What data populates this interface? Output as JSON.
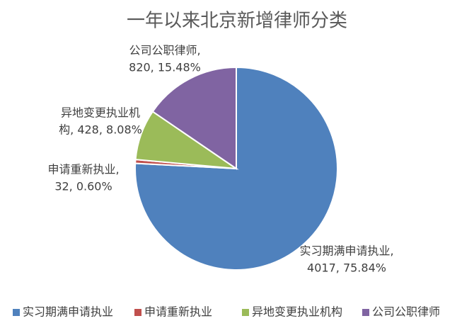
{
  "chart_data": {
    "type": "pie",
    "title": "一年以来北京新增律师分类",
    "categories": [
      "实习期满申请执业",
      "申请重新执业",
      "异地变更执业机构",
      "公司公职律师"
    ],
    "values": [
      4017,
      32,
      428,
      820
    ],
    "value_labels": [
      [
        "实习期满申请执业,",
        "4017, 75.84%"
      ],
      [
        "申请重新执业,",
        "32, 0.60%"
      ],
      [
        "异地变更执业机",
        "构, 428, 8.08%"
      ],
      [
        "公司公职律师,",
        "820, 15.48%"
      ]
    ],
    "colors": [
      "#4f81bd",
      "#c0504d",
      "#9bbb59",
      "#8064a2"
    ],
    "legend": "bottom"
  }
}
